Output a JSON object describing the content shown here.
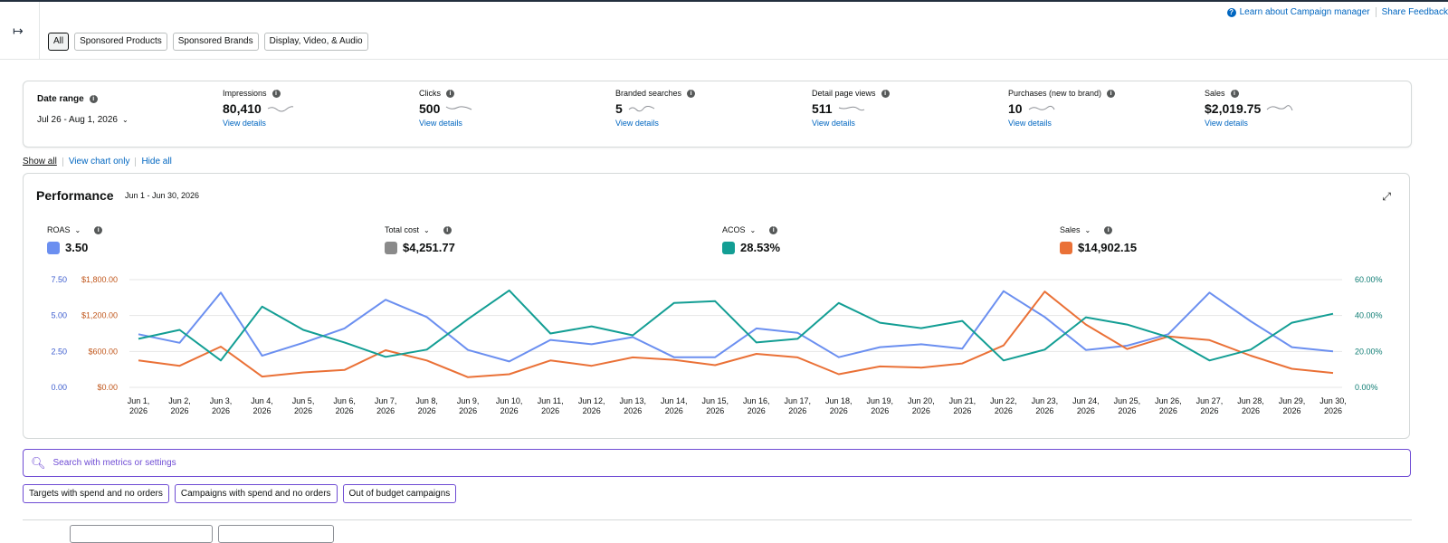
{
  "header": {
    "help_link": "Learn about Campaign manager",
    "feedback_link": "Share Feedback",
    "tabs": [
      {
        "label": "All",
        "active": true
      },
      {
        "label": "Sponsored Products",
        "active": false
      },
      {
        "label": "Sponsored Brands",
        "active": false
      },
      {
        "label": "Display, Video, & Audio",
        "active": false
      }
    ]
  },
  "summary": {
    "date_range_label": "Date range",
    "date_range_value": "Jul 26 - Aug 1, 2026",
    "metrics": [
      {
        "label": "Impressions",
        "value": "80,410",
        "link": "View details"
      },
      {
        "label": "Clicks",
        "value": "500",
        "link": "View details"
      },
      {
        "label": "Branded searches",
        "value": "5",
        "link": "View details"
      },
      {
        "label": "Detail page views",
        "value": "511",
        "link": "View details"
      },
      {
        "label": "Purchases (new to brand)",
        "value": "10",
        "link": "View details"
      },
      {
        "label": "Sales",
        "value": "$2,019.75",
        "link": "View details"
      }
    ]
  },
  "view_options": {
    "show_all": "Show all",
    "chart_only": "View chart only",
    "hide_all": "Hide all"
  },
  "performance": {
    "title": "Performance",
    "dates": "Jun 1 - Jun 30, 2026",
    "selected_metrics": [
      {
        "label": "ROAS",
        "value": "3.50",
        "color": "#6b8ff0"
      },
      {
        "label": "Total cost",
        "value": "$4,251.77",
        "color": "#8a8a8a"
      },
      {
        "label": "ACOS",
        "value": "28.53%",
        "color": "#139e94"
      },
      {
        "label": "Sales",
        "value": "$14,902.15",
        "color": "#ea7137"
      }
    ]
  },
  "chart_data": {
    "type": "line",
    "x": [
      "Jun 1, 2026",
      "Jun 2, 2026",
      "Jun 3, 2026",
      "Jun 4, 2026",
      "Jun 5, 2026",
      "Jun 6, 2026",
      "Jun 7, 2026",
      "Jun 8, 2026",
      "Jun 9, 2026",
      "Jun 10, 2026",
      "Jun 11, 2026",
      "Jun 12, 2026",
      "Jun 13, 2026",
      "Jun 14, 2026",
      "Jun 15, 2026",
      "Jun 16, 2026",
      "Jun 17, 2026",
      "Jun 18, 2026",
      "Jun 19, 2026",
      "Jun 20, 2026",
      "Jun 21, 2026",
      "Jun 22, 2026",
      "Jun 23, 2026",
      "Jun 24, 2026",
      "Jun 25, 2026",
      "Jun 26, 2026",
      "Jun 27, 2026",
      "Jun 28, 2026",
      "Jun 29, 2026",
      "Jun 30, 2026"
    ],
    "x_labels": [
      [
        "Jun 1,",
        "2026"
      ],
      [
        "Jun 2,",
        "2026"
      ],
      [
        "Jun 3,",
        "2026"
      ],
      [
        "Jun 4,",
        "2026"
      ],
      [
        "Jun 5,",
        "2026"
      ],
      [
        "Jun 6,",
        "2026"
      ],
      [
        "Jun 7,",
        "2026"
      ],
      [
        "Jun 8,",
        "2026"
      ],
      [
        "Jun 9,",
        "2026"
      ],
      [
        "Jun 10,",
        "2026"
      ],
      [
        "Jun 11,",
        "2026"
      ],
      [
        "Jun 12,",
        "2026"
      ],
      [
        "Jun 13,",
        "2026"
      ],
      [
        "Jun 14,",
        "2026"
      ],
      [
        "Jun 15,",
        "2026"
      ],
      [
        "Jun 16,",
        "2026"
      ],
      [
        "Jun 17,",
        "2026"
      ],
      [
        "Jun 18,",
        "2026"
      ],
      [
        "Jun 19,",
        "2026"
      ],
      [
        "Jun 20,",
        "2026"
      ],
      [
        "Jun 21,",
        "2026"
      ],
      [
        "Jun 22,",
        "2026"
      ],
      [
        "Jun 23,",
        "2026"
      ],
      [
        "Jun 24,",
        "2026"
      ],
      [
        "Jun 25,",
        "2026"
      ],
      [
        "Jun 26,",
        "2026"
      ],
      [
        "Jun 27,",
        "2026"
      ],
      [
        "Jun 28,",
        "2026"
      ],
      [
        "Jun 29,",
        "2026"
      ],
      [
        "Jun 30,",
        "2026"
      ]
    ],
    "axes": {
      "roas": {
        "ticks": [
          "7.50",
          "5.00",
          "2.50",
          "0.00"
        ],
        "range": [
          0,
          7.5
        ],
        "color": "#3f5fcf"
      },
      "money": {
        "ticks": [
          "$1,800.00",
          "$1,200.00",
          "$600.00",
          "$0.00"
        ],
        "range": [
          0,
          1800
        ],
        "color": "#c0561b"
      },
      "pct": {
        "ticks": [
          "60.00%",
          "40.00%",
          "20.00%",
          "0.00%"
        ],
        "range": [
          0,
          60
        ],
        "color": "#0f7d74"
      }
    },
    "series": [
      {
        "name": "ROAS",
        "axis": "roas",
        "color": "#6b8ff0",
        "values": [
          3.7,
          3.1,
          6.6,
          2.2,
          3.1,
          4.1,
          6.1,
          4.9,
          2.6,
          1.8,
          3.3,
          3.0,
          3.5,
          2.1,
          2.1,
          4.1,
          3.8,
          2.1,
          2.8,
          3.0,
          2.7,
          6.7,
          4.9,
          2.6,
          2.9,
          3.7,
          6.6,
          4.6,
          2.8,
          2.5
        ]
      },
      {
        "name": "Sales",
        "axis": "money",
        "color": "#ea7137",
        "values": [
          450,
          360,
          680,
          180,
          250,
          290,
          620,
          450,
          170,
          220,
          450,
          360,
          500,
          460,
          370,
          560,
          500,
          220,
          350,
          330,
          400,
          700,
          1600,
          1050,
          640,
          850,
          790,
          530,
          310,
          240
        ]
      },
      {
        "name": "ACOS",
        "axis": "pct",
        "color": "#139e94",
        "values": [
          27,
          32,
          15,
          45,
          32,
          25,
          17,
          21,
          38,
          54,
          30,
          34,
          29,
          47,
          48,
          25,
          27,
          47,
          36,
          33,
          37,
          15,
          21,
          39,
          35,
          28,
          15,
          21,
          36,
          41
        ]
      }
    ],
    "grid": true,
    "legend": "none"
  },
  "search": {
    "placeholder": "Search with metrics or settings"
  },
  "chips": [
    "Targets with spend and no orders",
    "Campaigns with spend and no orders",
    "Out of budget campaigns"
  ]
}
